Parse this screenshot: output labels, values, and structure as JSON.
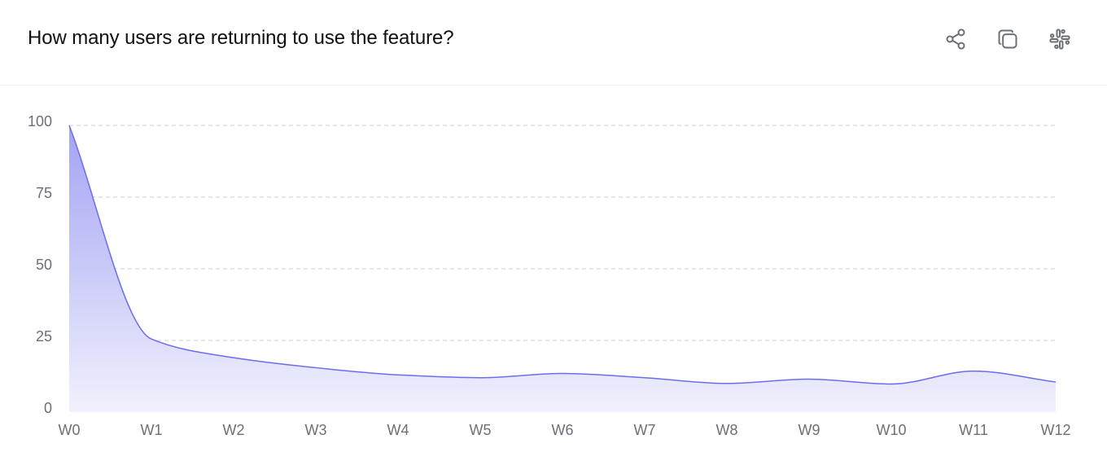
{
  "card": {
    "title": "How many users are returning to use the feature?",
    "actions": [
      {
        "id": "share",
        "icon": "share-icon"
      },
      {
        "id": "duplicate",
        "icon": "copy-icon"
      },
      {
        "id": "slack",
        "icon": "slack-icon"
      }
    ]
  },
  "chart_data": {
    "type": "area",
    "title": "",
    "xlabel": "",
    "ylabel": "",
    "x": [
      "W0",
      "W1",
      "W2",
      "W3",
      "W4",
      "W5",
      "W6",
      "W7",
      "W8",
      "W9",
      "W10",
      "W11",
      "W12"
    ],
    "series": [
      {
        "values": [
          100,
          25.5,
          19,
          15.5,
          13,
          12,
          13.5,
          12,
          10,
          11.5,
          9.8,
          14.3,
          10.5
        ]
      }
    ],
    "ylim": [
      0,
      100
    ],
    "yticks": [
      0,
      25,
      50,
      75,
      100
    ],
    "grid": true,
    "legend": "none",
    "colors": {
      "line": "#6c6cf0",
      "fill_top": "#a3a3f5",
      "fill_bottom": "#f1f1fd",
      "grid": "#cfcfd4",
      "tick": "#6b6f78"
    }
  }
}
